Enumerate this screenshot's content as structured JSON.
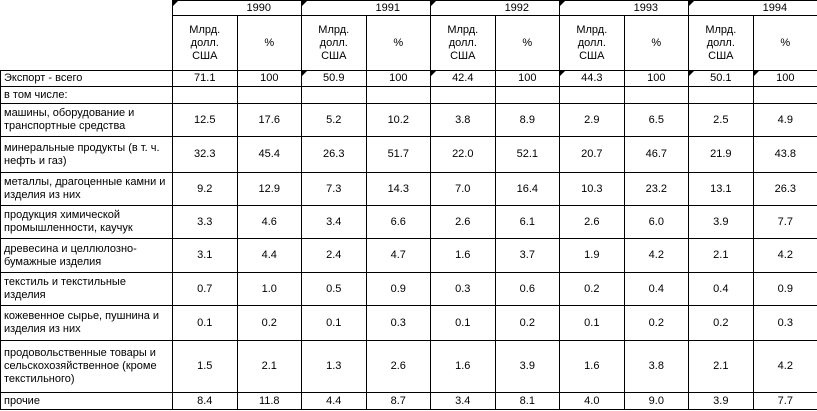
{
  "table": {
    "years": [
      "1990",
      "1991",
      "1992",
      "1993",
      "1994"
    ],
    "subheaders": [
      "Млрд. долл. США",
      "%"
    ],
    "rows": [
      {
        "label": "Экспорт - всего",
        "values": [
          "71.1",
          "100",
          "50.9",
          "100",
          "42.4",
          "100",
          "44.3",
          "100",
          "50.1",
          "100"
        ]
      },
      {
        "label": "в том числе:",
        "values": []
      },
      {
        "label": "машины, оборудование и транспортные средства",
        "values": [
          "12.5",
          "17.6",
          "5.2",
          "10.2",
          "3.8",
          "8.9",
          "2.9",
          "6.5",
          "2.5",
          "4.9"
        ]
      },
      {
        "label": "минеральные продукты (в т. ч. нефть и газ)",
        "values": [
          "32.3",
          "45.4",
          "26.3",
          "51.7",
          "22.0",
          "52.1",
          "20.7",
          "46.7",
          "21.9",
          "43.8"
        ]
      },
      {
        "label": "металлы, драгоценные камни и изделия из них",
        "values": [
          "9.2",
          "12.9",
          "7.3",
          "14.3",
          "7.0",
          "16.4",
          "10.3",
          "23.2",
          "13.1",
          "26.3"
        ]
      },
      {
        "label": "продукция химической промышленности, каучук",
        "values": [
          "3.3",
          "4.6",
          "3.4",
          "6.6",
          "2.6",
          "6.1",
          "2.6",
          "6.0",
          "3.9",
          "7.7"
        ]
      },
      {
        "label": "древесина и целлюлозно-бумажные изделия",
        "values": [
          "3.1",
          "4.4",
          "2.4",
          "4.7",
          "1.6",
          "3.7",
          "1.9",
          "4.2",
          "2.1",
          "4.2"
        ]
      },
      {
        "label": "текстиль и текстильные изделия",
        "values": [
          "0.7",
          "1.0",
          "0.5",
          "0.9",
          "0.3",
          "0.6",
          "0.2",
          "0.4",
          "0.4",
          "0.9"
        ]
      },
      {
        "label": "кожевенное сырье, пушнина и изделия из них",
        "values": [
          "0.1",
          "0.2",
          "0.1",
          "0.3",
          "0.1",
          "0.2",
          "0.1",
          "0.2",
          "0.2",
          "0.3"
        ]
      },
      {
        "label": "продовольственные товары и сельскохозяйственное (кроме текстильного)",
        "values": [
          "1.5",
          "2.1",
          "1.3",
          "2.6",
          "1.6",
          "3.9",
          "1.6",
          "3.8",
          "2.1",
          "4.2"
        ]
      },
      {
        "label": "прочие",
        "values": [
          "8.4",
          "11.8",
          "4.4",
          "8.7",
          "3.4",
          "8.1",
          "4.0",
          "9.0",
          "3.9",
          "7.7"
        ]
      }
    ]
  }
}
